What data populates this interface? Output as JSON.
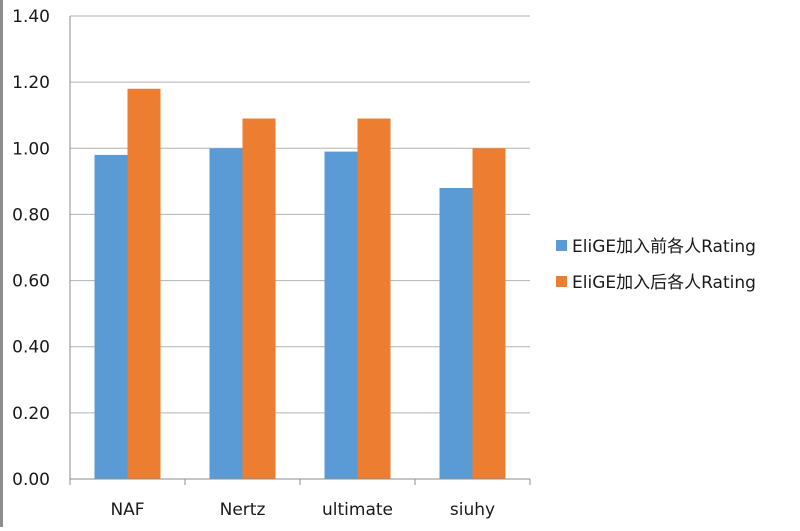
{
  "chart_data": {
    "type": "bar",
    "categories": [
      "NAF",
      "Nertz",
      "ultimate",
      "siuhy"
    ],
    "series": [
      {
        "name": "EliGE加入前各人Rating",
        "values": [
          0.98,
          1.0,
          0.99,
          0.88
        ],
        "color": "#5B9BD5"
      },
      {
        "name": "EliGE加入后各人Rating",
        "values": [
          1.18,
          1.09,
          1.09,
          1.0
        ],
        "color": "#ED7D31"
      }
    ],
    "title": "",
    "xlabel": "",
    "ylabel": "",
    "ylim": [
      0,
      1.4
    ],
    "yticks": [
      "0.00",
      "0.20",
      "0.40",
      "0.60",
      "0.80",
      "1.00",
      "1.20",
      "1.40"
    ],
    "grid": true,
    "legend_position": "right"
  }
}
